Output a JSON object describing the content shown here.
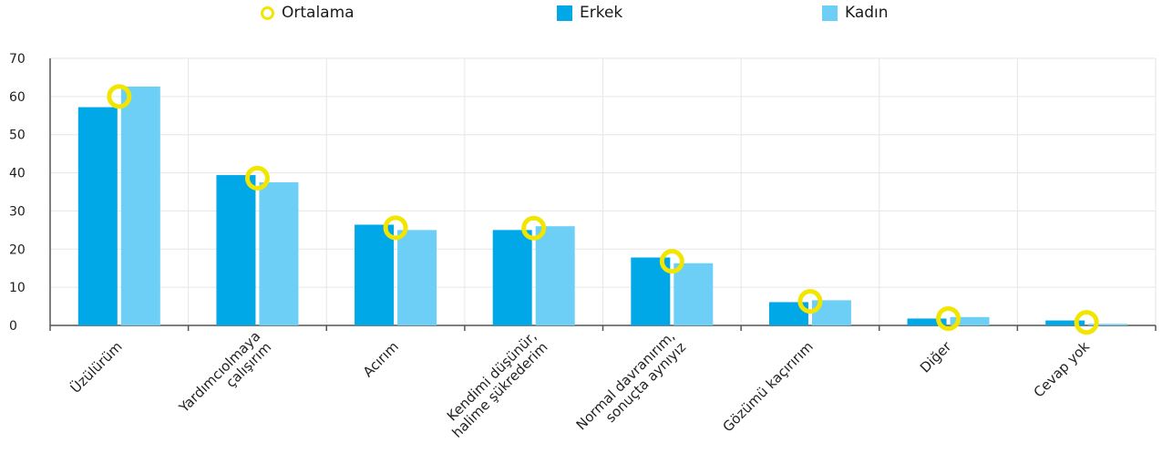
{
  "legend": {
    "mean_label": "Ortalama",
    "male_label": "Erkek",
    "female_label": "Kadın"
  },
  "colors": {
    "male": "#00a8e8",
    "female": "#6dcff6",
    "mean_marker": "#f2e500",
    "grid": "#e6e6e6",
    "axis": "#555555"
  },
  "chart_data": {
    "type": "bar",
    "categories": [
      [
        "Üzülürüm"
      ],
      [
        "Yardımcıolmaya",
        "çalışırım"
      ],
      [
        "Acırım"
      ],
      [
        "Kendimi düşünür,",
        "halime şükrederim"
      ],
      [
        "Normal davranırım,",
        "sonuçta aynıyız"
      ],
      [
        "Gözümü kaçırırım"
      ],
      [
        "Diğer"
      ],
      [
        "Cevap yok"
      ]
    ],
    "series": [
      {
        "name": "Erkek",
        "values": [
          57.2,
          39.4,
          26.4,
          25.0,
          17.8,
          6.1,
          1.8,
          1.3
        ]
      },
      {
        "name": "Kadın",
        "values": [
          62.6,
          37.5,
          25.0,
          26.0,
          16.3,
          6.6,
          2.2,
          0.4
        ]
      }
    ],
    "mean": {
      "name": "Ortalama",
      "values": [
        60.0,
        38.6,
        25.6,
        25.5,
        16.8,
        6.3,
        1.8,
        0.8
      ]
    },
    "yticks": [
      0,
      10,
      20,
      30,
      40,
      50,
      60,
      70
    ],
    "ylim": [
      0,
      70
    ],
    "grid": true,
    "legend_position": "top"
  }
}
